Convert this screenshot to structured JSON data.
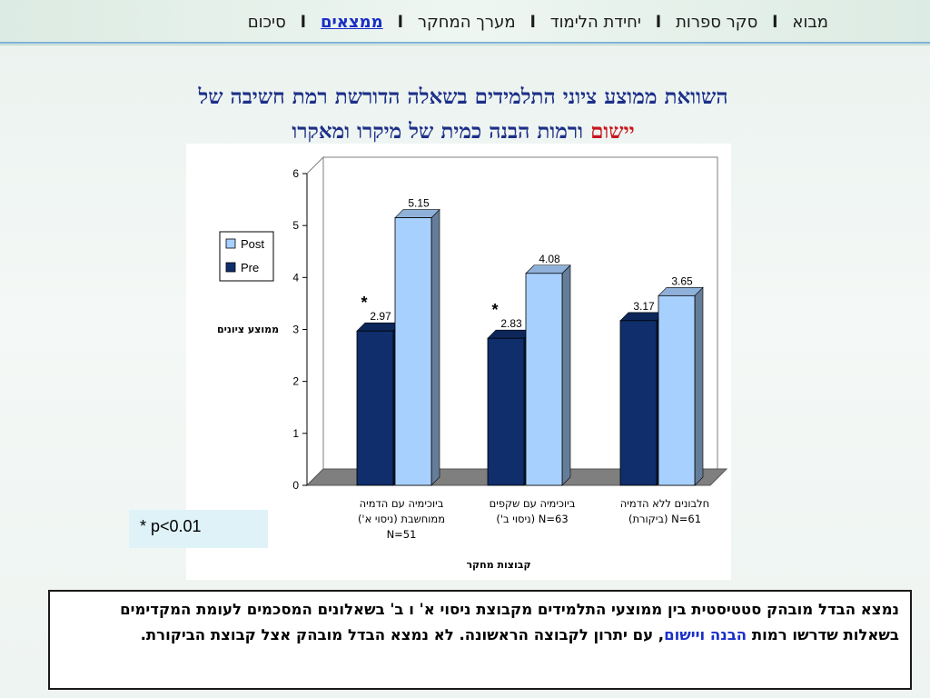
{
  "nav": {
    "items": [
      "מבוא",
      "סקר ספרות",
      "יחידת הלימוד",
      "מערך המחקר",
      "ממצאים",
      "סיכום"
    ],
    "separator": "l",
    "active_index": 4
  },
  "title": {
    "line1": "השוואת ממוצע ציוני התלמידים בשאלה הדורשת רמת חשיבה של",
    "line2_highlight": "יישום",
    "line2_rest": "ורמות הבנה כמית של מיקרו ומאקרו"
  },
  "significance_note": "* p<0.01",
  "conclusion": {
    "part1": "נמצא הבדל מובהק סטטיסטית בין ממוצעי התלמידים מקבוצת ניסוי א' ו ב' בשאלונים המסכמים לעומת המקדימים בשאלות שדרשו רמות",
    "word_understanding": "הבנה",
    "word_and": "ו",
    "word_application": "יישום",
    "part2": ", עם יתרון לקבוצה הראשונה. לא נמצא הבדל מובהק אצל קבוצת הביקורת."
  },
  "chart_data": {
    "type": "bar",
    "categories": [
      [
        "ביוכימיה עם הדמיה",
        "ממוחשבת (ניסוי א')",
        "N=51"
      ],
      [
        "ביוכימיה עם שקפים",
        "N=63  (ניסוי ב')"
      ],
      [
        "חלבונים ללא הדמיה",
        "N=61 (ביקורת)"
      ]
    ],
    "series": [
      {
        "name": "Pre",
        "values": [
          2.97,
          2.83,
          3.17
        ],
        "color": "#0f2e6b"
      },
      {
        "name": "Post",
        "values": [
          5.15,
          4.08,
          3.65
        ],
        "color": "#a8d0ff"
      }
    ],
    "data_labels": {
      "Pre": [
        "2.97",
        "2.83",
        "3.17"
      ],
      "Post": [
        "5.15",
        "4.08",
        "3.65"
      ]
    },
    "significance_markers": [
      "*",
      "*",
      ""
    ],
    "ylabel": "ממוצע ציונים",
    "xlabel": "קבוצות מחקר",
    "ylim": [
      0,
      6
    ],
    "yticks": [
      "0",
      "1",
      "2",
      "3",
      "4",
      "5",
      "6"
    ],
    "legend_position": "left",
    "three_d": true,
    "grid": false
  }
}
